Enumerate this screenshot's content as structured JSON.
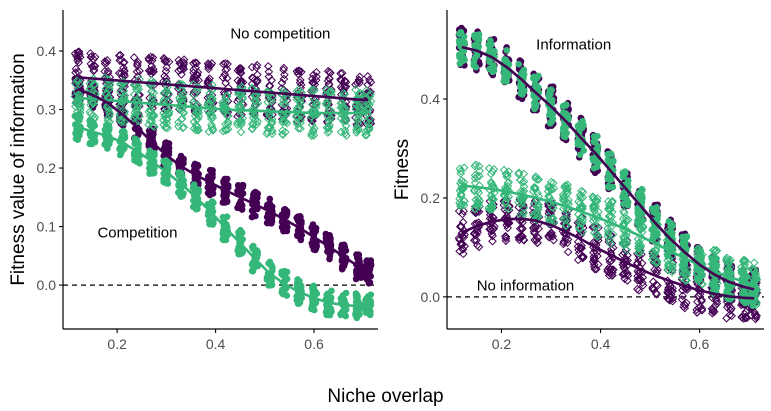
{
  "shared_xlabel": "Niche overlap",
  "colors": {
    "purple": "#440154",
    "green": "#35b779",
    "axis": "#000000",
    "tick": "#4d4d4d"
  },
  "chart_data": [
    {
      "type": "scatter",
      "title": "",
      "xlabel": "",
      "ylabel": "Fitness value of information",
      "xlim": [
        0.09,
        0.73
      ],
      "ylim": [
        -0.075,
        0.47
      ],
      "xticks": [
        0.2,
        0.4,
        0.6
      ],
      "xtick_labels": [
        "0.2",
        "0.4",
        "0.6"
      ],
      "yticks": [
        0.0,
        0.1,
        0.2,
        0.3,
        0.4
      ],
      "ytick_labels": [
        "0.0",
        "0.1",
        "0.2",
        "0.3",
        "0.4"
      ],
      "grid": false,
      "reference_line": {
        "y": 0,
        "style": "dashed"
      },
      "x": [
        0.12,
        0.15,
        0.18,
        0.21,
        0.24,
        0.27,
        0.3,
        0.33,
        0.36,
        0.39,
        0.42,
        0.45,
        0.48,
        0.51,
        0.54,
        0.57,
        0.6,
        0.63,
        0.66,
        0.69,
        0.71
      ],
      "annotations": [
        {
          "text": "No competition",
          "x": 0.43,
          "y": 0.43
        },
        {
          "text": "Competition",
          "x": 0.16,
          "y": 0.09
        }
      ],
      "series": [
        {
          "group": "No competition",
          "color": "#440154",
          "marker": "diamond-open",
          "mean": [
            0.355,
            0.353,
            0.351,
            0.349,
            0.347,
            0.345,
            0.343,
            0.341,
            0.339,
            0.337,
            0.335,
            0.333,
            0.331,
            0.329,
            0.327,
            0.325,
            0.323,
            0.321,
            0.319,
            0.317,
            0.316
          ],
          "spread": 0.045
        },
        {
          "group": "No competition",
          "color": "#35b779",
          "marker": "diamond-open",
          "mean": [
            0.32,
            0.318,
            0.316,
            0.314,
            0.312,
            0.31,
            0.308,
            0.306,
            0.304,
            0.302,
            0.3,
            0.299,
            0.298,
            0.297,
            0.296,
            0.295,
            0.294,
            0.294,
            0.294,
            0.294,
            0.294
          ],
          "spread": 0.04
        },
        {
          "group": "Competition",
          "color": "#440154",
          "marker": "circle",
          "mean": [
            0.335,
            0.325,
            0.312,
            0.292,
            0.27,
            0.245,
            0.222,
            0.203,
            0.188,
            0.175,
            0.162,
            0.15,
            0.138,
            0.126,
            0.112,
            0.098,
            0.082,
            0.066,
            0.049,
            0.032,
            0.02
          ],
          "spread": 0.022
        },
        {
          "group": "Competition",
          "color": "#35b779",
          "marker": "circle",
          "mean": [
            0.27,
            0.262,
            0.255,
            0.244,
            0.229,
            0.212,
            0.193,
            0.173,
            0.15,
            0.125,
            0.098,
            0.072,
            0.045,
            0.02,
            0.002,
            -0.012,
            -0.022,
            -0.03,
            -0.034,
            -0.036,
            -0.036
          ],
          "spread": 0.022
        }
      ]
    },
    {
      "type": "scatter",
      "title": "",
      "xlabel": "",
      "ylabel": "Fitness",
      "xlim": [
        0.09,
        0.73
      ],
      "ylim": [
        -0.065,
        0.58
      ],
      "xticks": [
        0.2,
        0.4,
        0.6
      ],
      "xtick_labels": [
        "0.2",
        "0.4",
        "0.6"
      ],
      "yticks": [
        0.0,
        0.2,
        0.4
      ],
      "ytick_labels": [
        "0.0",
        "0.2",
        "0.4"
      ],
      "grid": false,
      "reference_line": {
        "y": 0,
        "style": "dashed"
      },
      "x": [
        0.12,
        0.15,
        0.18,
        0.21,
        0.24,
        0.27,
        0.3,
        0.33,
        0.36,
        0.39,
        0.42,
        0.45,
        0.48,
        0.51,
        0.54,
        0.57,
        0.6,
        0.63,
        0.66,
        0.69,
        0.71
      ],
      "annotations": [
        {
          "text": "Information",
          "x": 0.27,
          "y": 0.51
        },
        {
          "text": "No information",
          "x": 0.15,
          "y": 0.023
        }
      ],
      "series": [
        {
          "group": "Information",
          "color": "#440154",
          "marker": "circle",
          "mean": [
            0.505,
            0.498,
            0.485,
            0.465,
            0.44,
            0.412,
            0.385,
            0.355,
            0.322,
            0.29,
            0.255,
            0.22,
            0.185,
            0.15,
            0.118,
            0.09,
            0.065,
            0.045,
            0.03,
            0.02,
            0.015
          ],
          "spread": 0.04
        },
        {
          "group": "Information",
          "color": "#35b779",
          "marker": "circle",
          "mean": [
            0.505,
            0.498,
            0.485,
            0.465,
            0.44,
            0.412,
            0.385,
            0.355,
            0.322,
            0.29,
            0.255,
            0.22,
            0.185,
            0.15,
            0.118,
            0.09,
            0.065,
            0.045,
            0.03,
            0.02,
            0.015
          ],
          "spread": 0.035
        },
        {
          "group": "No information",
          "color": "#440154",
          "marker": "diamond-open",
          "mean": [
            0.13,
            0.143,
            0.152,
            0.157,
            0.158,
            0.154,
            0.145,
            0.132,
            0.117,
            0.1,
            0.085,
            0.07,
            0.056,
            0.043,
            0.032,
            0.022,
            0.013,
            0.006,
            0.001,
            -0.002,
            -0.003
          ],
          "spread": 0.045
        },
        {
          "group": "No information",
          "color": "#35b779",
          "marker": "diamond-open",
          "mean": [
            0.225,
            0.222,
            0.218,
            0.213,
            0.207,
            0.2,
            0.192,
            0.183,
            0.173,
            0.162,
            0.15,
            0.137,
            0.123,
            0.108,
            0.093,
            0.078,
            0.064,
            0.051,
            0.04,
            0.031,
            0.025
          ],
          "spread": 0.045
        }
      ]
    }
  ]
}
